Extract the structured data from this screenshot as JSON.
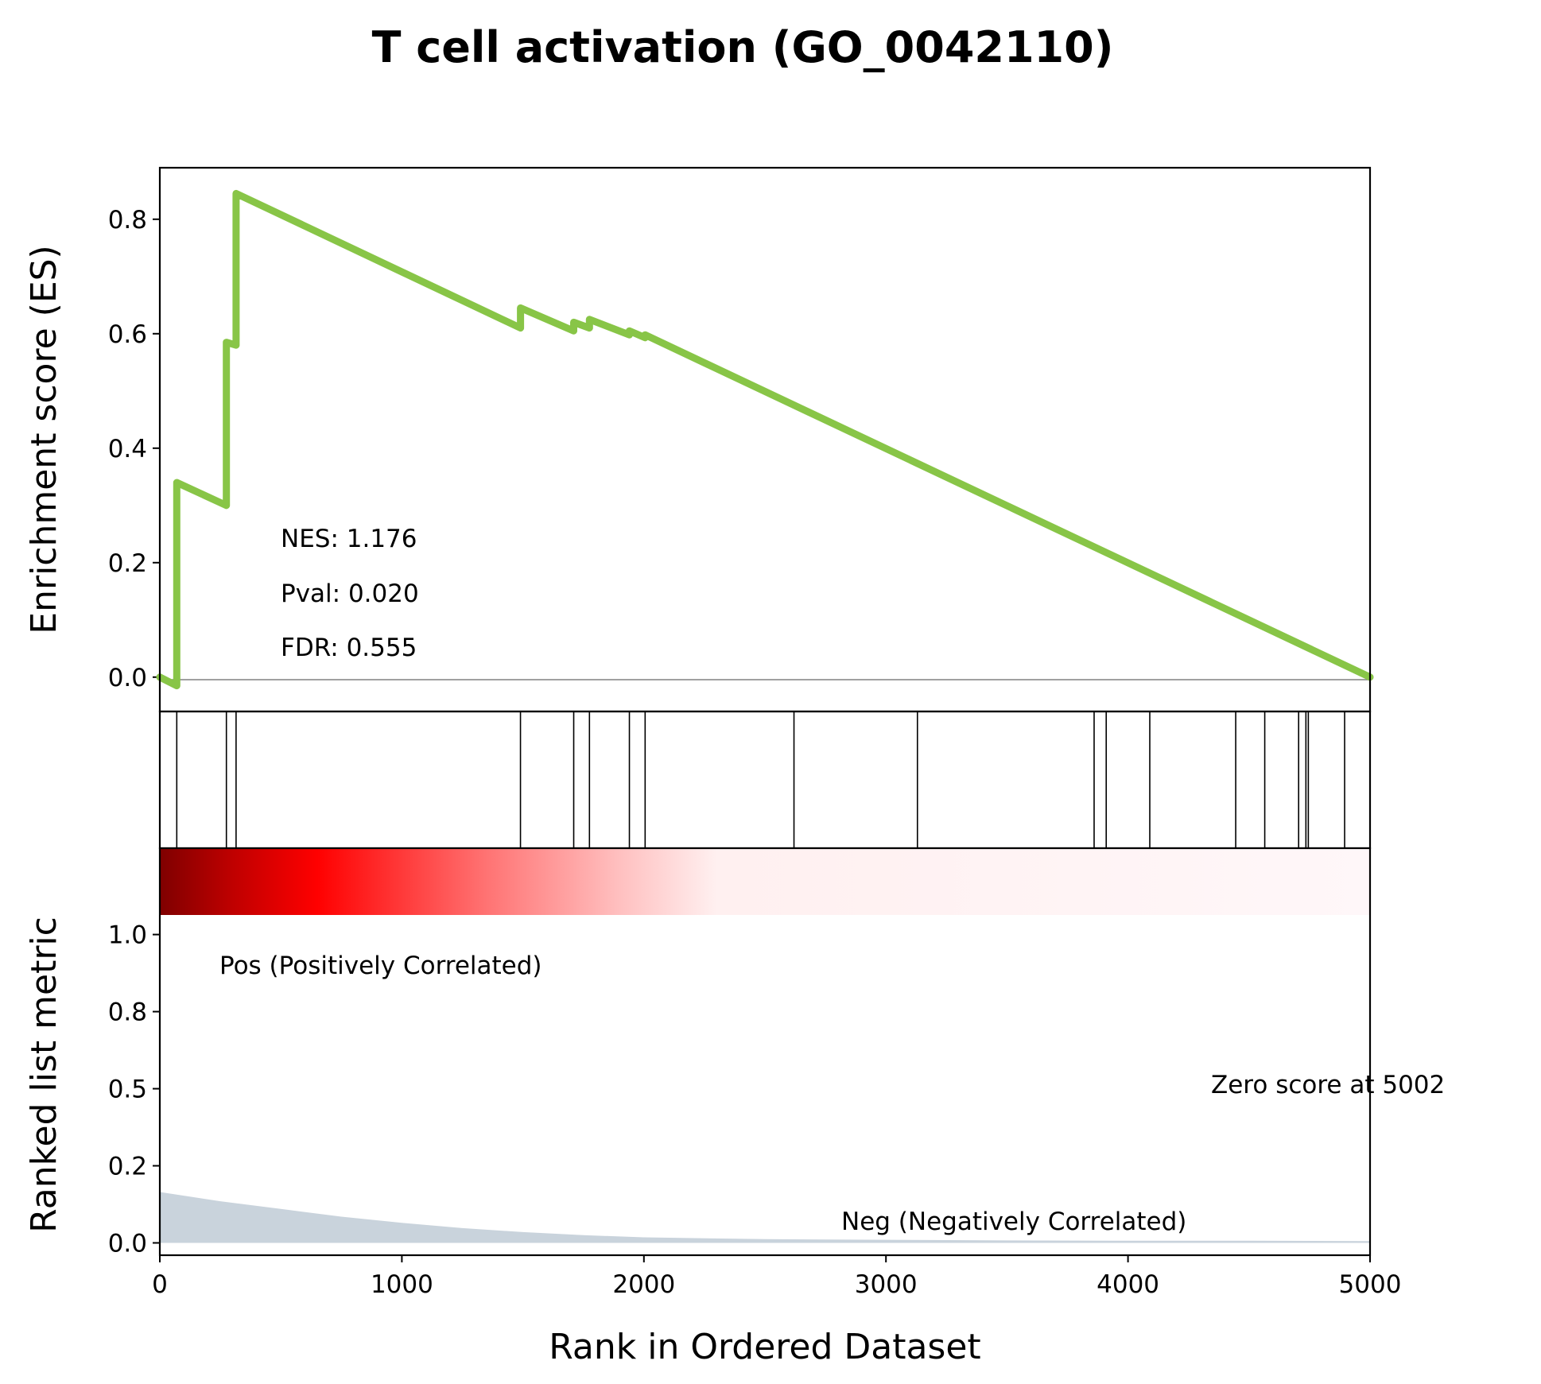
{
  "chart_data": {
    "type": "line",
    "title": "T cell activation (GO_0042110)",
    "es_panel": {
      "ylabel": "Enrichment score (ES)",
      "yticks": [
        "0.0",
        "0.2",
        "0.4",
        "0.6",
        "0.8"
      ],
      "ylim": [
        -0.06,
        0.89
      ],
      "xlim": [
        0,
        5000
      ],
      "line_color": "#88c547",
      "series": [
        {
          "x": [
            0,
            70,
            70,
            275,
            275,
            315,
            315,
            1490,
            1490,
            1710,
            1710,
            1775,
            1775,
            1940,
            1940,
            2005,
            2005,
            5000
          ],
          "y": [
            0.0,
            -0.015,
            0.34,
            0.3,
            0.585,
            0.58,
            0.845,
            0.61,
            0.645,
            0.605,
            0.62,
            0.61,
            0.625,
            0.598,
            0.605,
            0.593,
            0.598,
            0.0
          ]
        }
      ],
      "annotations": {
        "nes": "NES: 1.176",
        "pval": "Pval: 0.020",
        "fdr": "FDR: 0.555"
      }
    },
    "hits_panel": {
      "positions": [
        70,
        275,
        315,
        1490,
        1710,
        1775,
        1940,
        2005,
        2620,
        3130,
        3860,
        3910,
        4090,
        4445,
        4565,
        4705,
        4735,
        4745,
        4895
      ]
    },
    "rank_panel": {
      "ylabel": "Ranked list metric",
      "xlabel": "Rank in Ordered Dataset",
      "yticks": [
        "0.0",
        "0.2",
        "0.5",
        "0.8",
        "1.0"
      ],
      "ytick_values": [
        0.0,
        0.25,
        0.5,
        0.75,
        1.0
      ],
      "xticks": [
        "0",
        "1000",
        "2000",
        "3000",
        "4000",
        "5000"
      ],
      "xtick_values": [
        0,
        1000,
        2000,
        3000,
        4000,
        5000
      ],
      "ylim": [
        -0.04,
        1.28
      ],
      "xlim": [
        0,
        5000
      ],
      "fill_color": "#c9d3dc",
      "metric": {
        "x": [
          0,
          250,
          500,
          750,
          1000,
          1250,
          1500,
          1750,
          2000,
          2500,
          3000,
          3500,
          4000,
          4500,
          5000
        ],
        "y": [
          0.165,
          0.135,
          0.11,
          0.085,
          0.065,
          0.048,
          0.035,
          0.025,
          0.018,
          0.012,
          0.01,
          0.008,
          0.007,
          0.007,
          0.006
        ]
      },
      "pos_label": "Pos (Positively Correlated)",
      "neg_label": "Neg (Negatively Correlated)",
      "zero_label": "Zero score at 5002",
      "pos_color": "#ff0000",
      "neg_color": "#0000ff"
    }
  }
}
